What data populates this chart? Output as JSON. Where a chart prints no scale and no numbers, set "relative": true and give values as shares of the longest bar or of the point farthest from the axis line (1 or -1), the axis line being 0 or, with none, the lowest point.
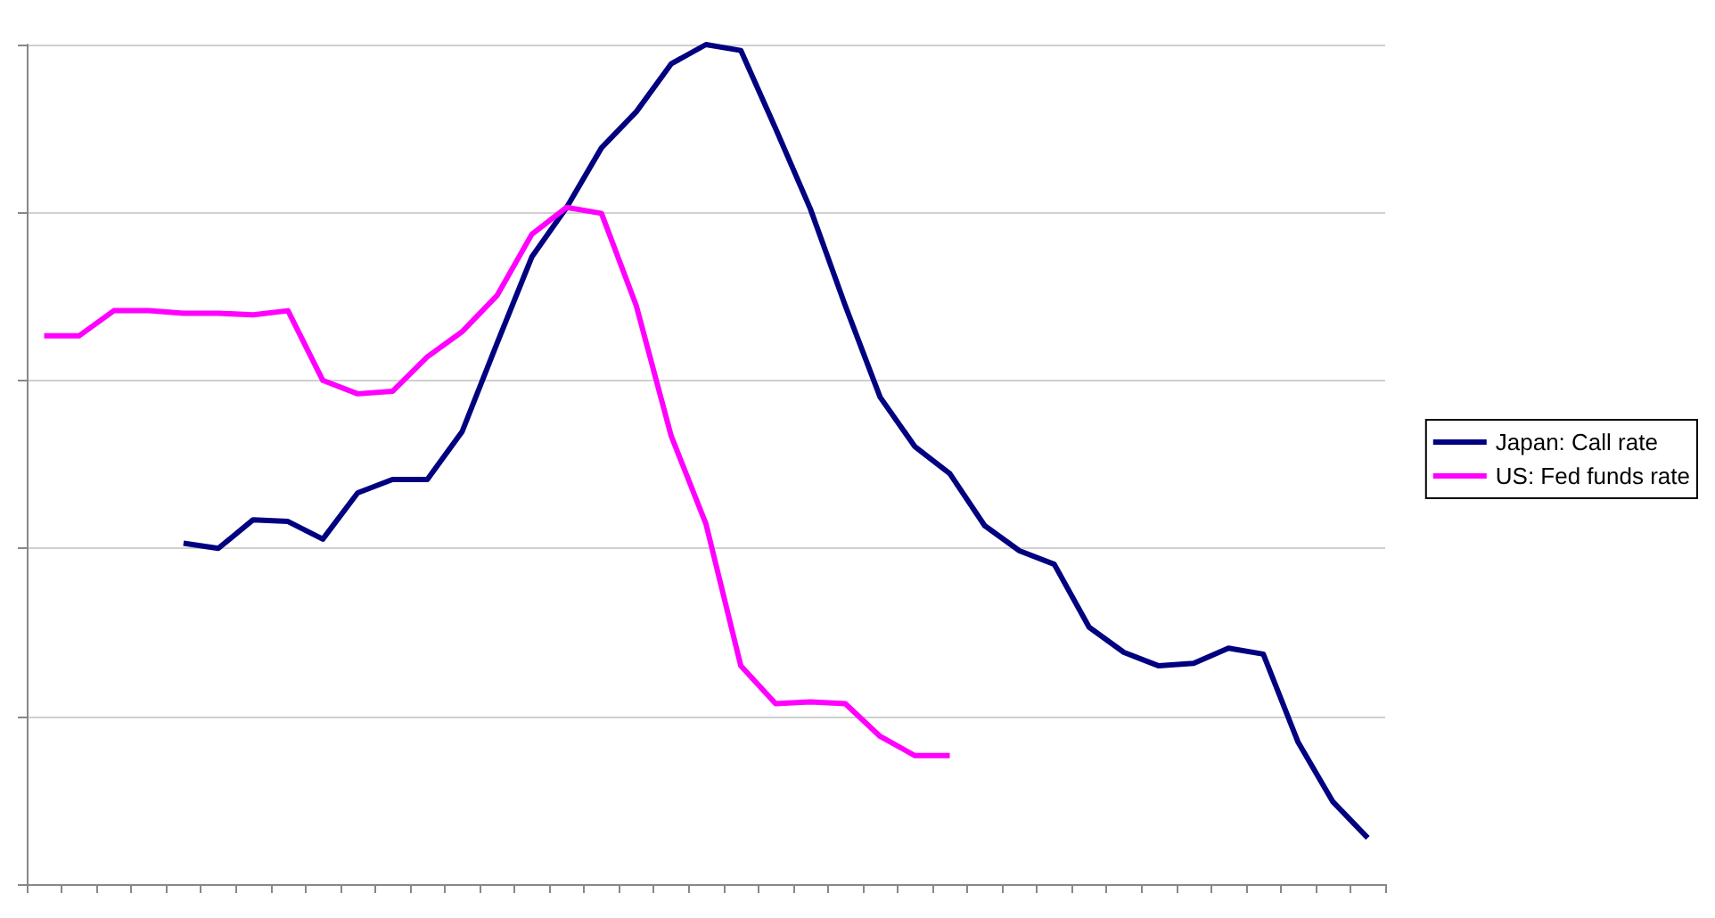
{
  "chart_data": {
    "type": "line",
    "relative": true,
    "categories": [
      null,
      null,
      null,
      null,
      null,
      null,
      null,
      null,
      null,
      null,
      null,
      null,
      null,
      null,
      null,
      null,
      null,
      null,
      null,
      null,
      null,
      null,
      null,
      null,
      null,
      null,
      null,
      null,
      null,
      null,
      null,
      null,
      null,
      null,
      null,
      null,
      null,
      null,
      null
    ],
    "series": [
      {
        "name": "Japan: Call rate",
        "color": "#000080",
        "values": [
          null,
          null,
          null,
          null,
          0.406,
          0.4,
          0.434,
          0.432,
          0.411,
          0.466,
          0.482,
          0.482,
          0.539,
          0.644,
          0.747,
          0.806,
          0.877,
          0.92,
          0.977,
          1,
          0.993,
          0.9,
          0.804,
          0.689,
          0.58,
          0.521,
          0.489,
          0.427,
          0.397,
          0.381,
          0.306,
          0.276,
          0.26,
          0.263,
          0.281,
          0.274,
          0.169,
          0.098,
          0.055
        ]
      },
      {
        "name": "US: Fed funds rate",
        "color": "#ff00ff",
        "values": [
          0.653,
          0.653,
          0.683,
          0.683,
          0.68,
          0.68,
          0.678,
          0.683,
          0.6,
          0.584,
          0.587,
          0.628,
          0.658,
          0.701,
          0.774,
          0.806,
          0.799,
          0.689,
          0.534,
          0.429,
          0.26,
          0.215,
          0.217,
          0.215,
          0.176,
          0.153,
          0.153,
          null,
          null,
          null,
          null,
          null,
          null,
          null,
          null,
          null,
          null,
          null,
          null
        ]
      }
    ],
    "grid": "y",
    "legend": "right",
    "marker": "none",
    "line_style": "solid"
  }
}
